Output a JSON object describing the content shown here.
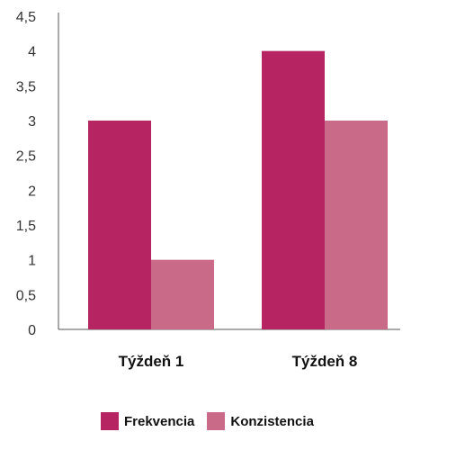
{
  "chart_data": {
    "type": "bar",
    "title": "",
    "xlabel": "",
    "ylabel": "",
    "categories": [
      "Týždeň 1",
      "Týždeň 8"
    ],
    "series": [
      {
        "name": "Frekvencia",
        "values": [
          3,
          4
        ],
        "color": "#b72462"
      },
      {
        "name": "Konzistencia",
        "values": [
          1,
          3
        ],
        "color": "#c96a88"
      }
    ],
    "ylim": [
      0,
      4.5
    ],
    "yticks": [
      "0",
      "0,5",
      "1",
      "1,5",
      "2",
      "2,5",
      "3",
      "3,5",
      "4",
      "4,5"
    ],
    "grid": false,
    "legend_position": "bottom-left"
  }
}
